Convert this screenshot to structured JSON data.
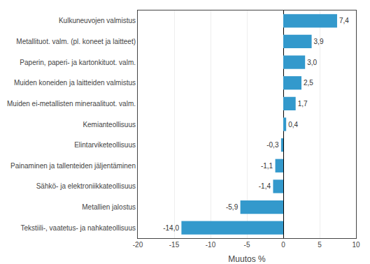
{
  "chart_data": {
    "type": "bar",
    "orientation": "horizontal",
    "categories": [
      "Tekstiili-, vaatetus- ja nahkateollisuus",
      "Metallien jalostus",
      "Sähkö- ja elektroniikkateollisuus",
      "Painaminen ja tallenteiden jäljentäminen",
      "Elintarviketeollisuus",
      "Kemianteollisuus",
      "Muiden ei-metallisten mineraalituot. valm.",
      "Muiden koneiden ja laitteiden valmistus",
      "Paperin, paperi- ja kartonkituot. valm.",
      "Metallituot. valm. (pl. koneet ja laitteet)",
      "Kulkuneuvojen valmistus"
    ],
    "values": [
      -14.0,
      -5.9,
      -1.4,
      -1.1,
      -0.3,
      0.4,
      1.7,
      2.5,
      3.0,
      3.9,
      7.4
    ],
    "value_labels": [
      "-14,0",
      "-5,9",
      "-1,4",
      "-1,1",
      "-0,3",
      "0,4",
      "1,7",
      "2,5",
      "3,0",
      "3,9",
      "7,4"
    ],
    "data_labels": true,
    "color": "#3399CC",
    "xlabel": "Muutos %",
    "xlim": [
      -20,
      10
    ],
    "xticks": [
      -20,
      -15,
      -10,
      -5,
      0,
      5,
      10
    ],
    "grid": true
  }
}
